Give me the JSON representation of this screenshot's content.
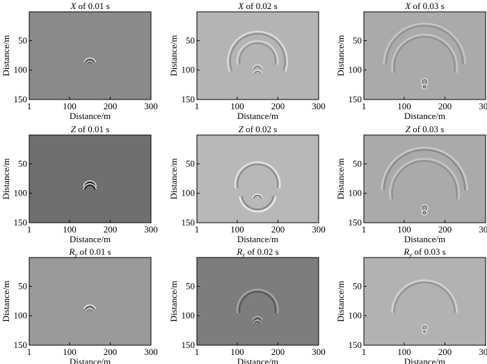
{
  "chart_data": [
    {
      "type": "heatmap",
      "component": "X",
      "title_suffix": " of 0.01 s",
      "xlabel": "Distance/m",
      "ylabel": "Distance/m",
      "xticks": [
        "1",
        "100",
        "200",
        "300"
      ],
      "yticks": [
        "50",
        "100",
        "150"
      ],
      "xlim": [
        1,
        300
      ],
      "ylim": [
        150,
        1
      ],
      "background": "#8a8a8a",
      "wavefronts": [
        {
          "cx": 150,
          "cy": 90,
          "r": 12,
          "arc_start": 200,
          "arc_end": 340,
          "contrast": 0.9
        },
        {
          "cx": 150,
          "cy": 92,
          "r": 8,
          "arc_start": 210,
          "arc_end": 330,
          "contrast": 0.8
        }
      ]
    },
    {
      "type": "heatmap",
      "component": "X",
      "title_suffix": " of 0.02 s",
      "xlabel": "Distance/m",
      "ylabel": "Distance/m",
      "xticks": [
        "1",
        "100",
        "200",
        "300"
      ],
      "yticks": [
        "50",
        "100",
        "150"
      ],
      "xlim": [
        1,
        300
      ],
      "ylim": [
        150,
        1
      ],
      "background": "#b4b4b4",
      "wavefronts": [
        {
          "cx": 150,
          "cy": 85,
          "r": 68,
          "arc_start": 160,
          "arc_end": 380,
          "contrast": 0.35
        },
        {
          "cx": 150,
          "cy": 85,
          "r": 45,
          "arc_start": 170,
          "arc_end": 370,
          "contrast": 0.3
        },
        {
          "cx": 150,
          "cy": 100,
          "r": 10,
          "arc_start": 200,
          "arc_end": 340,
          "contrast": 0.85
        },
        {
          "cx": 150,
          "cy": 108,
          "r": 9,
          "arc_start": 200,
          "arc_end": 340,
          "contrast": 0.85
        }
      ]
    },
    {
      "type": "heatmap",
      "component": "X",
      "title_suffix": " of 0.03 s",
      "xlabel": "Distance/m",
      "ylabel": "Distance/m",
      "xticks": [
        "1",
        "100",
        "200",
        "300"
      ],
      "yticks": [
        "50",
        "100",
        "150"
      ],
      "xlim": [
        1,
        300
      ],
      "ylim": [
        150,
        1
      ],
      "background": "#aaaaaa",
      "wavefronts": [
        {
          "cx": 150,
          "cy": 90,
          "r": 95,
          "arc_start": 180,
          "arc_end": 360,
          "contrast": 0.25
        },
        {
          "cx": 150,
          "cy": 95,
          "r": 75,
          "arc_start": 170,
          "arc_end": 370,
          "contrast": 0.25
        },
        {
          "cx": 150,
          "cy": 120,
          "r": 6,
          "arc_start": 0,
          "arc_end": 360,
          "contrast": 0.9
        },
        {
          "cx": 150,
          "cy": 128,
          "r": 4,
          "arc_start": 0,
          "arc_end": 360,
          "contrast": 0.9
        }
      ]
    },
    {
      "type": "heatmap",
      "component": "Z",
      "title_suffix": " of 0.01 s",
      "xlabel": "Distance/m",
      "ylabel": "Distance/m",
      "xticks": [
        "1",
        "100",
        "200",
        "300"
      ],
      "yticks": [
        "50",
        "100",
        "150"
      ],
      "xlim": [
        1,
        300
      ],
      "ylim": [
        150,
        1
      ],
      "background": "#6f6f6f",
      "wavefronts": [
        {
          "cx": 150,
          "cy": 90,
          "r": 13,
          "arc_start": 190,
          "arc_end": 350,
          "contrast": 0.95
        },
        {
          "cx": 150,
          "cy": 95,
          "r": 13,
          "arc_start": 190,
          "arc_end": 350,
          "contrast": 0.95
        }
      ]
    },
    {
      "type": "heatmap",
      "component": "Z",
      "title_suffix": " of 0.02 s",
      "xlabel": "Distance/m",
      "ylabel": "Distance/m",
      "xticks": [
        "1",
        "100",
        "200",
        "300"
      ],
      "yticks": [
        "50",
        "100",
        "150"
      ],
      "xlim": [
        1,
        300
      ],
      "ylim": [
        150,
        1
      ],
      "background": "#b8b8b8",
      "wavefronts": [
        {
          "cx": 150,
          "cy": 85,
          "r": 50,
          "arc_start": 170,
          "arc_end": 370,
          "contrast": 0.4
        },
        {
          "cx": 150,
          "cy": 100,
          "r": 40,
          "arc_start": 10,
          "arc_end": 170,
          "contrast": 0.45
        },
        {
          "cx": 150,
          "cy": 110,
          "r": 10,
          "arc_start": 190,
          "arc_end": 350,
          "contrast": 0.95
        }
      ]
    },
    {
      "type": "heatmap",
      "component": "Z",
      "title_suffix": " of 0.03 s",
      "xlabel": "Distance/m",
      "ylabel": "Distance/m",
      "xticks": [
        "1",
        "100",
        "200",
        "300"
      ],
      "yticks": [
        "50",
        "100",
        "150"
      ],
      "xlim": [
        1,
        300
      ],
      "ylim": [
        150,
        1
      ],
      "background": "#aaaaaa",
      "wavefronts": [
        {
          "cx": 150,
          "cy": 95,
          "r": 100,
          "arc_start": 180,
          "arc_end": 360,
          "contrast": 0.3
        },
        {
          "cx": 150,
          "cy": 100,
          "r": 80,
          "arc_start": 170,
          "arc_end": 370,
          "contrast": 0.25
        },
        {
          "cx": 150,
          "cy": 125,
          "r": 6,
          "arc_start": 0,
          "arc_end": 360,
          "contrast": 0.9
        },
        {
          "cx": 150,
          "cy": 133,
          "r": 4,
          "arc_start": 0,
          "arc_end": 360,
          "contrast": 0.9
        }
      ]
    },
    {
      "type": "heatmap",
      "component": "R",
      "component_sub": "y",
      "title_suffix": " of 0.01 s",
      "xlabel": "Distance/m",
      "ylabel": "Distance/m",
      "xticks": [
        "1",
        "100",
        "200",
        "300"
      ],
      "yticks": [
        "50",
        "100",
        "150"
      ],
      "xlim": [
        1,
        300
      ],
      "ylim": [
        150,
        1
      ],
      "background": "#9a9a9a",
      "wavefronts": [
        {
          "cx": 150,
          "cy": 92,
          "r": 12,
          "arc_start": 200,
          "arc_end": 340,
          "contrast": 0.85
        },
        {
          "cx": 150,
          "cy": 95,
          "r": 8,
          "arc_start": 210,
          "arc_end": 330,
          "contrast": 0.75
        }
      ]
    },
    {
      "type": "heatmap",
      "component": "R",
      "component_sub": "y",
      "title_suffix": " of 0.02 s",
      "xlabel": "Distance/m",
      "ylabel": "Distance/m",
      "xticks": [
        "1",
        "100",
        "200",
        "300"
      ],
      "yticks": [
        "50",
        "100",
        "150"
      ],
      "xlim": [
        1,
        300
      ],
      "ylim": [
        150,
        1
      ],
      "background": "#7d7d7d",
      "wavefronts": [
        {
          "cx": 150,
          "cy": 90,
          "r": 45,
          "arc_start": 170,
          "arc_end": 370,
          "contrast": 0.35
        },
        {
          "cx": 150,
          "cy": 110,
          "r": 10,
          "arc_start": 200,
          "arc_end": 340,
          "contrast": 0.85
        },
        {
          "cx": 150,
          "cy": 115,
          "r": 8,
          "arc_start": 200,
          "arc_end": 340,
          "contrast": 0.8
        }
      ]
    },
    {
      "type": "heatmap",
      "component": "R",
      "component_sub": "y",
      "title_suffix": " of 0.03 s",
      "xlabel": "Distance/m",
      "ylabel": "Distance/m",
      "xticks": [
        "1",
        "100",
        "200",
        "300"
      ],
      "yticks": [
        "50",
        "100",
        "150"
      ],
      "xlim": [
        1,
        300
      ],
      "ylim": [
        150,
        1
      ],
      "background": "#b2b2b2",
      "wavefronts": [
        {
          "cx": 150,
          "cy": 95,
          "r": 75,
          "arc_start": 180,
          "arc_end": 360,
          "contrast": 0.3
        },
        {
          "cx": 150,
          "cy": 120,
          "r": 5,
          "arc_start": 0,
          "arc_end": 360,
          "contrast": 0.85
        },
        {
          "cx": 150,
          "cy": 127,
          "r": 3,
          "arc_start": 0,
          "arc_end": 360,
          "contrast": 0.85
        }
      ]
    }
  ]
}
